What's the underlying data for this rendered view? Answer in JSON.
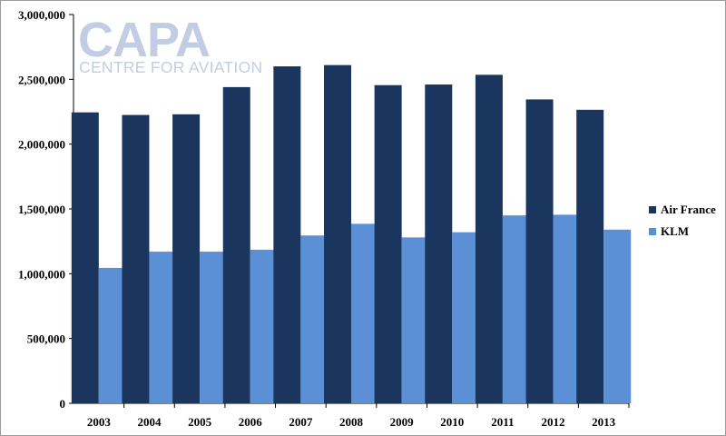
{
  "logo": {
    "main": "CAPA",
    "sub": "CENTRE FOR AVIATION"
  },
  "chart_data": {
    "type": "bar",
    "title": "",
    "xlabel": "",
    "ylabel": "",
    "categories": [
      "2003",
      "2004",
      "2005",
      "2006",
      "2007",
      "2008",
      "2009",
      "2010",
      "2011",
      "2012",
      "2013"
    ],
    "series": [
      {
        "name": "Air France",
        "color": "#1b365e",
        "values": [
          2245000,
          2225000,
          2230000,
          2440000,
          2600000,
          2610000,
          2455000,
          2460000,
          2535000,
          2345000,
          2265000
        ]
      },
      {
        "name": "KLM",
        "color": "#5b8fd6",
        "values": [
          1045000,
          1170000,
          1170000,
          1185000,
          1295000,
          1385000,
          1280000,
          1320000,
          1450000,
          1455000,
          1340000
        ]
      }
    ],
    "ylim": [
      0,
      3000000
    ],
    "yticks": [
      0,
      500000,
      1000000,
      1500000,
      2000000,
      2500000,
      3000000
    ],
    "ytick_labels": [
      "0",
      "500,000",
      "1,000,000",
      "1,500,000",
      "2,000,000",
      "2,500,000",
      "3,000,000"
    ],
    "legend_position": "right",
    "grid": false
  }
}
